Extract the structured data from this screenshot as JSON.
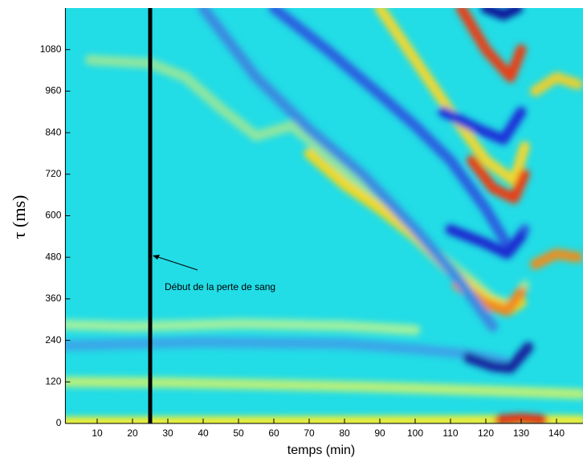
{
  "chart_data": {
    "type": "heatmap-ridges",
    "xlabel": "temps (min)",
    "ylabel": "τ (ms)",
    "annotation": "Début de la perte de sang",
    "background": "#22dce6",
    "xlim": [
      1,
      147.5
    ],
    "ylim": [
      0,
      1200
    ],
    "xticks": [
      10,
      20,
      30,
      40,
      50,
      60,
      70,
      80,
      90,
      100,
      110,
      120,
      130,
      140
    ],
    "yticks": [
      0,
      120,
      240,
      360,
      480,
      600,
      720,
      840,
      960,
      1080
    ],
    "vline_x": 25,
    "series": [
      {
        "color": "#3aa6e8",
        "x": [
          1,
          20,
          40,
          60,
          80,
          100,
          115,
          125
        ],
        "values": [
          225,
          230,
          235,
          232,
          230,
          215,
          200,
          180
        ]
      },
      {
        "color": "#b8f07a",
        "x": [
          1,
          30,
          60,
          90,
          120,
          147
        ],
        "values": [
          120,
          118,
          112,
          105,
          95,
          85
        ]
      },
      {
        "color": "#9ef0a0",
        "x": [
          1,
          20,
          50,
          80,
          100
        ],
        "values": [
          285,
          280,
          288,
          282,
          270
        ]
      },
      {
        "color": "#f4ee30",
        "x": [
          1,
          40,
          80,
          115,
          130,
          147
        ],
        "values": [
          4,
          5,
          6,
          8,
          10,
          8
        ]
      },
      {
        "color": "#8ee6a0",
        "x": [
          8,
          25,
          35,
          45,
          55,
          65,
          75,
          85,
          95,
          105,
          115,
          122,
          128,
          131
        ],
        "values": [
          1050,
          1040,
          1000,
          910,
          830,
          860,
          780,
          680,
          600,
          500,
          420,
          360,
          340,
          400
        ]
      },
      {
        "color": "#f2d820",
        "x": [
          70,
          80,
          90,
          100,
          110,
          120,
          127,
          130
        ],
        "values": [
          780,
          690,
          620,
          540,
          440,
          360,
          330,
          350
        ]
      },
      {
        "color": "#f08a20",
        "x": [
          112,
          120,
          126,
          130
        ],
        "values": [
          400,
          345,
          325,
          380
        ]
      },
      {
        "color": "#f0d830",
        "x": [
          90,
          100,
          110,
          120,
          128,
          131
        ],
        "values": [
          1200,
          1050,
          900,
          760,
          700,
          800
        ]
      },
      {
        "color": "#e84018",
        "x": [
          113,
          120,
          127,
          130
        ],
        "values": [
          1200,
          1080,
          1000,
          1080
        ]
      },
      {
        "color": "#e84018",
        "x": [
          116,
          122,
          128,
          131
        ],
        "values": [
          760,
          680,
          650,
          720
        ]
      },
      {
        "color": "#2c5ee0",
        "x": [
          60,
          75,
          90,
          100,
          110,
          120,
          127,
          131
        ],
        "values": [
          1200,
          1080,
          950,
          860,
          760,
          620,
          500,
          560
        ]
      },
      {
        "color": "#1a2ad0",
        "x": [
          110,
          120,
          126,
          130
        ],
        "values": [
          560,
          520,
          490,
          540
        ]
      },
      {
        "color": "#1a30d8",
        "x": [
          108,
          118,
          125,
          130
        ],
        "values": [
          900,
          850,
          820,
          900
        ]
      },
      {
        "color": "#10189a",
        "x": [
          120,
          125,
          129
        ],
        "values": [
          1200,
          1180,
          1200
        ]
      },
      {
        "color": "#18209e",
        "x": [
          115,
          122,
          127,
          132
        ],
        "values": [
          190,
          165,
          160,
          220
        ]
      },
      {
        "color": "#3a8ae0",
        "x": [
          40,
          55,
          70,
          85,
          100,
          112,
          122
        ],
        "values": [
          1200,
          1000,
          850,
          720,
          560,
          420,
          280
        ]
      },
      {
        "color": "#e89020",
        "x": [
          134,
          140,
          146
        ],
        "values": [
          460,
          490,
          480
        ]
      },
      {
        "color": "#e8d030",
        "x": [
          134,
          140,
          146
        ],
        "values": [
          960,
          1000,
          980
        ]
      },
      {
        "color": "#e83010",
        "x": [
          124,
          130,
          136
        ],
        "values": [
          10,
          14,
          10
        ]
      }
    ]
  }
}
